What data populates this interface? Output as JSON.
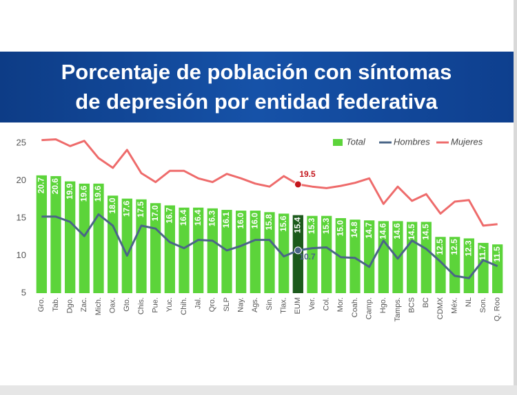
{
  "chart_data": {
    "type": "bar-line",
    "title": [
      "Porcentaje de población con síntomas",
      "de depresión por entidad federativa"
    ],
    "categories": [
      "Gro.",
      "Tab.",
      "Dgo.",
      "Zac.",
      "Mich.",
      "Oax.",
      "Gto.",
      "Chis.",
      "Pue.",
      "Yuc.",
      "Chih.",
      "Jal.",
      "Qro.",
      "SLP",
      "Nay.",
      "Ags.",
      "Sin.",
      "Tlax.",
      "EUM",
      "Ver.",
      "Col.",
      "Mor.",
      "Coah.",
      "Camp.",
      "Hgo.",
      "Tamps.",
      "BCS",
      "BC",
      "CDMX",
      "Méx.",
      "NL",
      "Son.",
      "Q. Roo"
    ],
    "series": [
      {
        "name": "Total",
        "kind": "bar",
        "color": "#5cd43a",
        "colors": [
          "#5cd43a",
          "#5cd43a",
          "#5cd43a",
          "#5cd43a",
          "#5cd43a",
          "#5cd43a",
          "#5cd43a",
          "#5cd43a",
          "#5cd43a",
          "#5cd43a",
          "#5cd43a",
          "#5cd43a",
          "#5cd43a",
          "#5cd43a",
          "#5cd43a",
          "#5cd43a",
          "#5cd43a",
          "#5cd43a",
          "#1c5a1c",
          "#5cd43a",
          "#5cd43a",
          "#5cd43a",
          "#5cd43a",
          "#5cd43a",
          "#5cd43a",
          "#5cd43a",
          "#5cd43a",
          "#5cd43a",
          "#5cd43a",
          "#5cd43a",
          "#5cd43a",
          "#5cd43a",
          "#5cd43a"
        ],
        "values": [
          20.7,
          20.6,
          19.9,
          19.6,
          19.6,
          18.0,
          17.6,
          17.5,
          17.0,
          16.7,
          16.4,
          16.4,
          16.3,
          16.1,
          16.0,
          16.0,
          15.8,
          15.6,
          15.4,
          15.3,
          15.3,
          15.0,
          14.8,
          14.7,
          14.6,
          14.6,
          14.5,
          14.5,
          12.5,
          12.5,
          12.3,
          11.7,
          11.5
        ],
        "value_labels": [
          "20.7",
          "20.6",
          "19.9",
          "19.6",
          "19.6",
          "18.0",
          "17.6",
          "17.5",
          "17.0",
          "16.7",
          "16.4",
          "16.4",
          "16.3",
          "16.1",
          "16.0",
          "16.0",
          "15.8",
          "15.6",
          "15.4",
          "15.3",
          "15.3",
          "15.0",
          "14.8",
          "14.7",
          "14.6",
          "14.6",
          "14.5",
          "14.5",
          "12.5",
          "12.5",
          "12.3",
          "11.7",
          "11.5"
        ]
      },
      {
        "name": "Hombres",
        "kind": "line",
        "color": "#4a6587",
        "marker_color": "#4a6587",
        "values": [
          15.2,
          15.2,
          14.5,
          12.6,
          15.5,
          14.0,
          10.0,
          14.0,
          13.6,
          11.8,
          11.0,
          12.1,
          12.0,
          10.7,
          11.3,
          12.1,
          12.1,
          9.9,
          10.7,
          11.0,
          11.1,
          9.8,
          9.7,
          8.5,
          12.0,
          9.6,
          12.0,
          10.9,
          9.2,
          7.3,
          7.0,
          9.4,
          8.6
        ],
        "value_labels": [
          null,
          null,
          null,
          null,
          null,
          null,
          null,
          null,
          null,
          null,
          null,
          null,
          null,
          null,
          null,
          null,
          null,
          null,
          "10.7",
          null,
          null,
          null,
          null,
          null,
          null,
          null,
          null,
          null,
          null,
          null,
          null,
          null,
          null
        ]
      },
      {
        "name": "Mujeres",
        "kind": "line",
        "color": "#ee6b6b",
        "marker_color": "#c4161c",
        "values": [
          25.4,
          25.5,
          24.6,
          25.3,
          23.0,
          21.7,
          24.1,
          21.0,
          19.8,
          21.3,
          21.3,
          20.3,
          19.8,
          20.9,
          20.3,
          19.6,
          19.2,
          20.6,
          19.5,
          19.2,
          19.0,
          19.3,
          19.7,
          20.3,
          16.9,
          19.2,
          17.3,
          18.2,
          15.6,
          17.2,
          17.4,
          14.0,
          14.2
        ],
        "value_labels": [
          null,
          null,
          null,
          null,
          null,
          null,
          null,
          null,
          null,
          null,
          null,
          null,
          null,
          null,
          null,
          null,
          null,
          null,
          "19.5",
          null,
          null,
          null,
          null,
          null,
          null,
          null,
          null,
          null,
          null,
          null,
          null,
          null,
          null
        ]
      }
    ],
    "ylim": [
      5,
      26.5
    ],
    "yticks": [
      5,
      10,
      15,
      20,
      25
    ],
    "legend": "top-right",
    "grid": false
  }
}
